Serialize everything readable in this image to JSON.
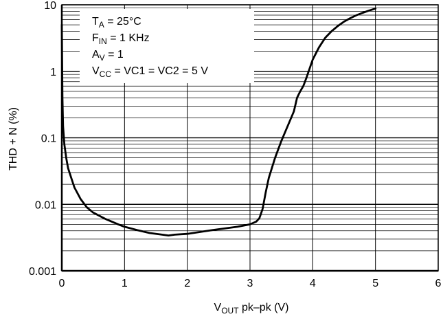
{
  "chart_data": {
    "type": "line",
    "x_axis": {
      "min": 0,
      "max": 6,
      "scale": "linear",
      "ticks": [
        0,
        1,
        2,
        3,
        4,
        5,
        6
      ],
      "tick_labels": [
        "0",
        "1",
        "2",
        "3",
        "4",
        "5",
        "6"
      ],
      "label_main": "V",
      "label_sub": "OUT",
      "label_rest": " pk–pk (V)"
    },
    "y_axis": {
      "min": 0.001,
      "max": 10,
      "scale": "log",
      "ticks": [
        0.001,
        0.01,
        0.1,
        1,
        10
      ],
      "tick_labels": [
        "0.001",
        "0.01",
        "0.1",
        "1",
        "10"
      ],
      "label": "THD + N (%)"
    },
    "grid": true,
    "annotations": [
      {
        "main": "T",
        "sub": "A",
        "rest": " = 25°C"
      },
      {
        "main": "F",
        "sub": "IN",
        "rest": " = 1 KHz"
      },
      {
        "main": "A",
        "sub": "V",
        "rest": " = 1"
      },
      {
        "main": "V",
        "sub": "CC",
        "rest": " = VC1 = VC2 = 5 V"
      }
    ],
    "series": [
      {
        "color": "#000000",
        "x": [
          0.0,
          0.01,
          0.02,
          0.04,
          0.07,
          0.1,
          0.15,
          0.2,
          0.3,
          0.4,
          0.5,
          0.7,
          0.9,
          1.0,
          1.2,
          1.4,
          1.6,
          1.7,
          1.8,
          2.0,
          2.4,
          2.8,
          3.0,
          3.1,
          3.15,
          3.2,
          3.25,
          3.3,
          3.4,
          3.5,
          3.6,
          3.7,
          3.75,
          3.8,
          3.85,
          3.9,
          3.95,
          4.0,
          4.1,
          4.2,
          4.3,
          4.4,
          4.5,
          4.6,
          4.7,
          4.8,
          4.9,
          5.0
        ],
        "y": [
          5,
          0.4,
          0.15,
          0.08,
          0.05,
          0.035,
          0.025,
          0.018,
          0.012,
          0.009,
          0.0075,
          0.006,
          0.005,
          0.0046,
          0.0041,
          0.0037,
          0.0035,
          0.0034,
          0.0035,
          0.0036,
          0.0041,
          0.0046,
          0.005,
          0.0055,
          0.0062,
          0.0085,
          0.015,
          0.025,
          0.05,
          0.09,
          0.15,
          0.25,
          0.4,
          0.5,
          0.6,
          0.8,
          1.1,
          1.5,
          2.3,
          3.2,
          4.0,
          4.8,
          5.6,
          6.3,
          7.0,
          7.6,
          8.2,
          8.8
        ]
      }
    ]
  }
}
